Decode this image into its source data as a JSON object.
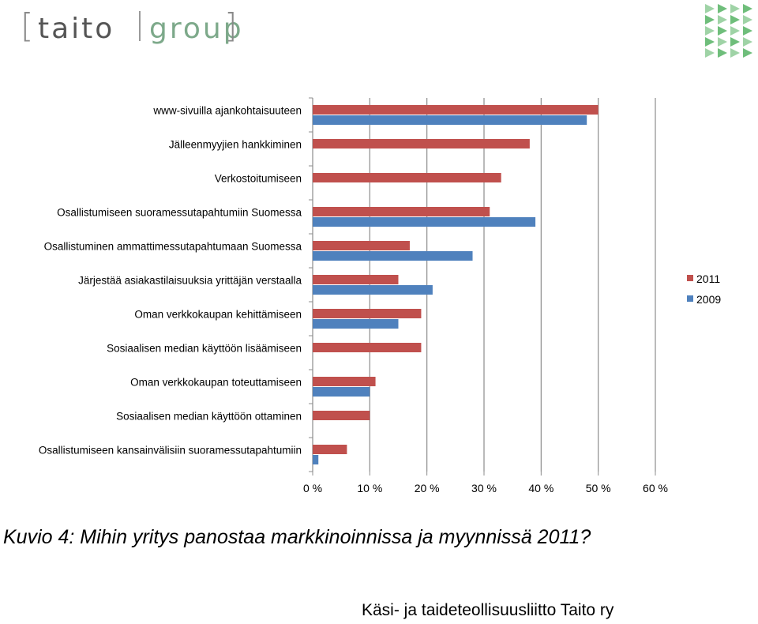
{
  "logo": {
    "word1": "taito",
    "word2": "group",
    "bracket_left": "[",
    "bracket_right": "]"
  },
  "chart_data": {
    "type": "bar",
    "orientation": "horizontal",
    "categories": [
      "www-sivuilla ajankohtaisuuteen",
      "Jälleenmyyjien hankkiminen",
      "Verkostoitumiseen",
      "Osallistumiseen suoramessutapahtumiin Suomessa",
      "Osallistuminen ammattimessutapahtumaan Suomessa",
      "Järjestää asiakastilaisuuksia yrittäjän verstaalla",
      "Oman verkkokaupan kehittämiseen",
      "Sosiaalisen median käyttöön lisäämiseen",
      "Oman verkkokaupan toteuttamiseen",
      "Sosiaalisen median käyttöön ottaminen",
      "Osallistumiseen kansainvälisiin suoramessutapahtumiin"
    ],
    "series": [
      {
        "name": "2011",
        "color": "#c0504d",
        "values": [
          50,
          38,
          33,
          31,
          17,
          15,
          19,
          19,
          11,
          10,
          6
        ]
      },
      {
        "name": "2009",
        "color": "#4f81bd",
        "values": [
          48,
          null,
          null,
          39,
          28,
          21,
          15,
          null,
          10,
          null,
          1
        ]
      }
    ],
    "xlim": [
      0,
      60
    ],
    "xticks": [
      "0 %",
      "10 %",
      "20 %",
      "30 %",
      "40 %",
      "50 %",
      "60 %"
    ],
    "grid": true,
    "legend_position": "right"
  },
  "caption": "Kuvio 4: Mihin yritys panostaa markkinoinnissa ja myynnissä 2011?",
  "footer": "Käsi- ja taideteollisuusliitto Taito ry"
}
